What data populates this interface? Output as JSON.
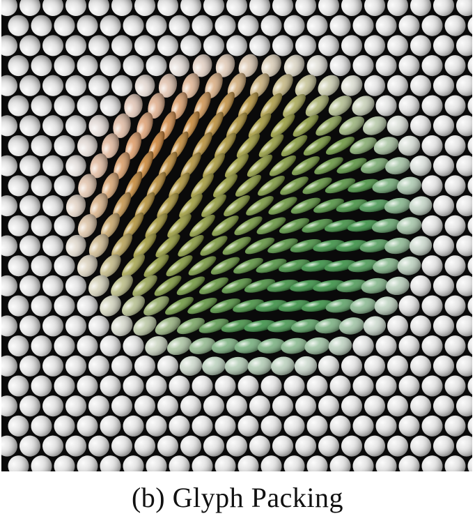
{
  "figure": {
    "caption": "(b) Glyph Packing",
    "colors": {
      "background": "#0a0a0a",
      "sphere": "#e6e6e6",
      "red": "#c8341a",
      "orange": "#d9782e",
      "olive": "#9b9a35",
      "green": "#2e8b3a"
    },
    "glyph_shapes": [
      "sphere",
      "ellipsoid"
    ]
  }
}
